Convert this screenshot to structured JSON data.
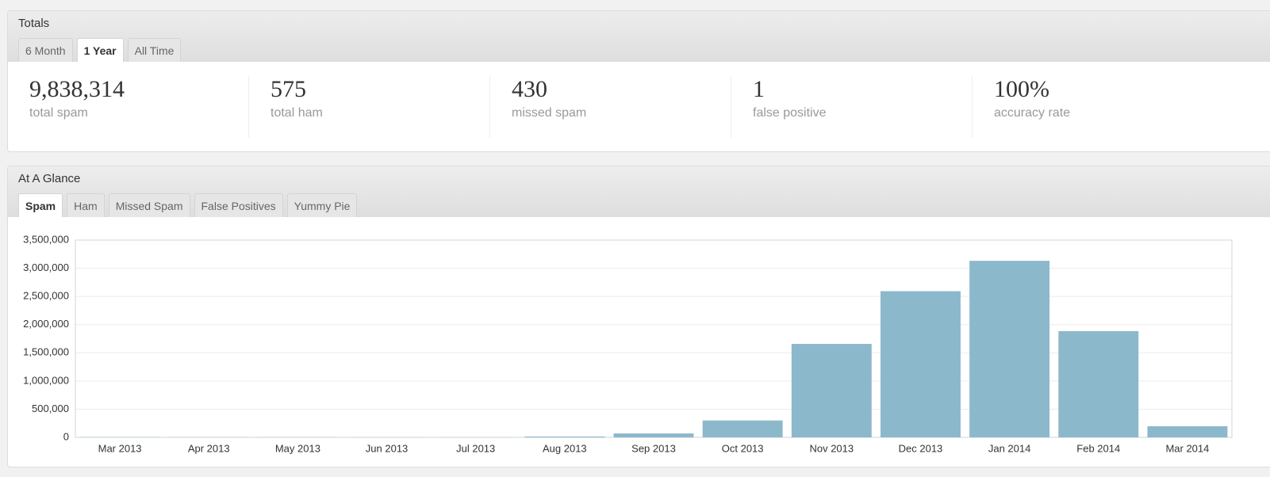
{
  "totals": {
    "title": "Totals",
    "tabs": [
      "6 Month",
      "1 Year",
      "All Time"
    ],
    "active_tab": 1,
    "stats": [
      {
        "value": "9,838,314",
        "label": "total spam"
      },
      {
        "value": "575",
        "label": "total ham"
      },
      {
        "value": "430",
        "label": "missed spam"
      },
      {
        "value": "1",
        "label": "false positive"
      },
      {
        "value": "100%",
        "label": "accuracy rate"
      }
    ]
  },
  "at_a_glance": {
    "title": "At A Glance",
    "tabs": [
      "Spam",
      "Ham",
      "Missed Spam",
      "False Positives",
      "Yummy Pie"
    ],
    "active_tab": 0
  },
  "chart_data": {
    "type": "bar",
    "categories": [
      "Mar 2013",
      "Apr 2013",
      "May 2013",
      "Jun 2013",
      "Jul 2013",
      "Aug 2013",
      "Sep 2013",
      "Oct 2013",
      "Nov 2013",
      "Dec 2013",
      "Jan 2014",
      "Feb 2014",
      "Mar 2014"
    ],
    "values": [
      5000,
      3000,
      3000,
      2000,
      2000,
      15000,
      70000,
      300000,
      1658000,
      2593000,
      3132000,
      1885000,
      198000
    ],
    "color": "#8cb8cb",
    "ylim": [
      0,
      3500000
    ],
    "yticks": [
      0,
      {
        "value": 500000,
        "label": "500,000"
      },
      {
        "value": 1000000,
        "label": "1,000,000"
      },
      {
        "value": 1500000,
        "label": "1,500,000"
      },
      {
        "value": 2000000,
        "label": "2,000,000"
      },
      {
        "value": 2500000,
        "label": "2,500,000"
      },
      {
        "value": 3000000,
        "label": "3,000,000"
      },
      {
        "value": 3500000,
        "label": "3,500,000"
      }
    ],
    "grid": true
  }
}
